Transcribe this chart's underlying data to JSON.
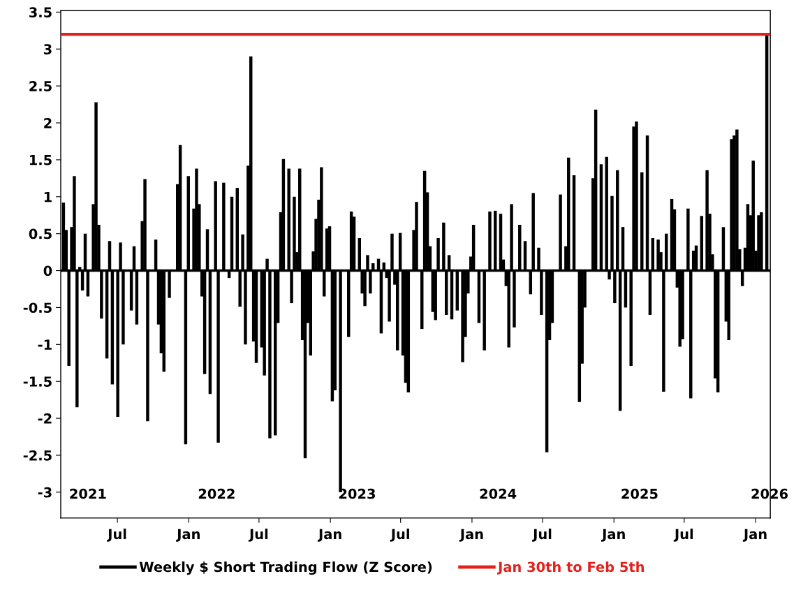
{
  "chart_data": {
    "type": "bar",
    "x": [
      "2021-02-12",
      "2021-02-19",
      "2021-02-26",
      "2021-03-05",
      "2021-03-12",
      "2021-03-19",
      "2021-03-26",
      "2021-04-02",
      "2021-04-09",
      "2021-04-16",
      "2021-04-30",
      "2021-05-07",
      "2021-05-14",
      "2021-05-21",
      "2021-06-04",
      "2021-06-11",
      "2021-06-18",
      "2021-07-02",
      "2021-07-09",
      "2021-07-16",
      "2021-08-06",
      "2021-08-13",
      "2021-08-20",
      "2021-09-03",
      "2021-09-10",
      "2021-09-17",
      "2021-10-08",
      "2021-10-15",
      "2021-10-22",
      "2021-10-29",
      "2021-11-12",
      "2021-12-03",
      "2021-12-10",
      "2021-12-24",
      "2021-12-31",
      "2022-01-14",
      "2022-01-21",
      "2022-01-28",
      "2022-02-04",
      "2022-02-11",
      "2022-02-18",
      "2022-02-25",
      "2022-03-11",
      "2022-03-18",
      "2022-04-01",
      "2022-04-15",
      "2022-04-22",
      "2022-05-06",
      "2022-05-13",
      "2022-05-20",
      "2022-05-27",
      "2022-06-03",
      "2022-06-10",
      "2022-06-17",
      "2022-06-24",
      "2022-07-08",
      "2022-07-15",
      "2022-07-22",
      "2022-07-29",
      "2022-08-12",
      "2022-08-19",
      "2022-08-26",
      "2022-09-02",
      "2022-09-16",
      "2022-09-23",
      "2022-09-30",
      "2022-10-07",
      "2022-10-14",
      "2022-10-21",
      "2022-10-28",
      "2022-11-04",
      "2022-11-11",
      "2022-11-18",
      "2022-11-25",
      "2022-12-02",
      "2022-12-09",
      "2022-12-16",
      "2022-12-23",
      "2022-12-30",
      "2023-01-06",
      "2023-01-13",
      "2023-01-27",
      "2023-02-17",
      "2023-02-24",
      "2023-03-03",
      "2023-03-17",
      "2023-03-24",
      "2023-03-31",
      "2023-04-07",
      "2023-04-14",
      "2023-04-21",
      "2023-05-05",
      "2023-05-12",
      "2023-05-19",
      "2023-05-26",
      "2023-06-02",
      "2023-06-09",
      "2023-06-16",
      "2023-06-23",
      "2023-06-30",
      "2023-07-07",
      "2023-07-14",
      "2023-07-21",
      "2023-08-04",
      "2023-08-11",
      "2023-08-25",
      "2023-09-01",
      "2023-09-08",
      "2023-09-15",
      "2023-09-22",
      "2023-09-29",
      "2023-10-06",
      "2023-10-20",
      "2023-10-27",
      "2023-11-03",
      "2023-11-10",
      "2023-11-24",
      "2023-12-08",
      "2023-12-15",
      "2023-12-22",
      "2023-12-29",
      "2024-01-05",
      "2024-01-19",
      "2024-02-02",
      "2024-02-16",
      "2024-03-01",
      "2024-03-15",
      "2024-03-22",
      "2024-03-29",
      "2024-04-05",
      "2024-04-12",
      "2024-04-19",
      "2024-05-03",
      "2024-05-17",
      "2024-05-31",
      "2024-06-07",
      "2024-06-21",
      "2024-06-28",
      "2024-07-12",
      "2024-07-19",
      "2024-07-26",
      "2024-08-16",
      "2024-08-30",
      "2024-09-06",
      "2024-09-20",
      "2024-10-04",
      "2024-10-11",
      "2024-10-18",
      "2024-11-08",
      "2024-11-15",
      "2024-11-29",
      "2024-12-13",
      "2024-12-20",
      "2024-12-27",
      "2025-01-03",
      "2025-01-10",
      "2025-01-17",
      "2025-01-24",
      "2025-01-31",
      "2025-02-14",
      "2025-02-21",
      "2025-02-28",
      "2025-03-14",
      "2025-03-28",
      "2025-04-04",
      "2025-04-11",
      "2025-04-25",
      "2025-05-02",
      "2025-05-09",
      "2025-05-16",
      "2025-05-30",
      "2025-06-06",
      "2025-06-13",
      "2025-06-20",
      "2025-06-27",
      "2025-07-11",
      "2025-07-18",
      "2025-07-25",
      "2025-08-01",
      "2025-08-15",
      "2025-08-29",
      "2025-09-05",
      "2025-09-12",
      "2025-09-19",
      "2025-09-26",
      "2025-10-10",
      "2025-10-17",
      "2025-10-24",
      "2025-10-31",
      "2025-11-07",
      "2025-11-14",
      "2025-11-21",
      "2025-11-28",
      "2025-12-05",
      "2025-12-12",
      "2025-12-19",
      "2025-12-26",
      "2026-01-02",
      "2026-01-09",
      "2026-01-16",
      "2026-01-30"
    ],
    "series": [
      {
        "name": "Weekly $ Short Trading Flow (Z Score)",
        "color": "#000000",
        "values": [
          0.92,
          0.55,
          -1.29,
          0.59,
          1.28,
          -1.85,
          0.05,
          -0.27,
          0.5,
          -0.35,
          0.9,
          2.28,
          0.62,
          -0.65,
          -1.19,
          0.4,
          -1.54,
          -1.98,
          0.38,
          -1.0,
          -0.54,
          0.33,
          -0.73,
          0.67,
          1.24,
          -2.04,
          0.42,
          -0.73,
          -1.12,
          -1.37,
          -0.37,
          1.17,
          1.7,
          -2.35,
          1.28,
          0.84,
          1.38,
          0.9,
          -0.35,
          -1.4,
          0.56,
          -1.67,
          1.21,
          -2.33,
          1.19,
          -0.1,
          1.0,
          1.12,
          -0.49,
          0.49,
          -1.0,
          1.42,
          2.9,
          -0.96,
          -1.25,
          -1.04,
          -1.42,
          0.16,
          -2.27,
          -2.23,
          -0.71,
          0.79,
          1.51,
          1.38,
          -0.44,
          1.0,
          0.25,
          1.38,
          -0.94,
          -2.54,
          -0.71,
          -1.15,
          0.26,
          0.7,
          0.96,
          1.4,
          -0.35,
          0.57,
          0.6,
          -1.77,
          -1.62,
          -3.0,
          -0.9,
          0.8,
          0.73,
          0.44,
          -0.31,
          -0.48,
          0.21,
          -0.31,
          0.1,
          0.16,
          -0.85,
          0.11,
          -0.1,
          -0.69,
          0.5,
          -0.19,
          -1.08,
          0.51,
          -1.15,
          -1.52,
          -1.65,
          0.55,
          0.93,
          -0.79,
          1.35,
          1.06,
          0.33,
          -0.56,
          -0.67,
          0.44,
          0.65,
          -0.6,
          0.21,
          -0.66,
          -0.54,
          -1.24,
          -0.9,
          -0.31,
          0.19,
          0.62,
          -0.71,
          -1.08,
          0.8,
          0.81,
          0.77,
          0.15,
          -0.21,
          -1.04,
          0.9,
          -0.77,
          0.62,
          0.4,
          -0.32,
          1.05,
          0.31,
          -0.6,
          -2.46,
          -0.94,
          -0.71,
          1.03,
          0.33,
          1.53,
          1.29,
          -1.78,
          -1.26,
          -0.5,
          1.25,
          2.18,
          1.44,
          1.54,
          -0.12,
          1.01,
          -0.44,
          1.36,
          -1.9,
          0.59,
          -0.5,
          -1.29,
          1.95,
          2.02,
          1.33,
          1.83,
          -0.6,
          0.44,
          0.42,
          0.25,
          -1.64,
          0.5,
          0.97,
          0.83,
          -0.23,
          -1.03,
          -0.93,
          0.84,
          -1.73,
          0.27,
          0.34,
          0.74,
          1.36,
          0.77,
          0.22,
          -1.46,
          -1.65,
          0.59,
          -0.69,
          -0.94,
          1.78,
          1.83,
          1.91,
          0.29,
          -0.21,
          0.31,
          0.9,
          0.75,
          1.49,
          0.27,
          0.75,
          0.79,
          3.2
        ]
      }
    ],
    "ref_lines": [
      {
        "axis": "y",
        "value": 3.2,
        "label": "Jan 30th to Feb 5th",
        "color": "#e3201b",
        "line_style": "solid"
      }
    ],
    "xlim": [
      "2021-02-05",
      "2026-02-08"
    ],
    "xticks": [
      {
        "value": "2021-07-01",
        "label": "Jul"
      },
      {
        "value": "2022-01-01",
        "label": "Jan"
      },
      {
        "value": "2022-07-01",
        "label": "Jul"
      },
      {
        "value": "2023-01-01",
        "label": "Jan"
      },
      {
        "value": "2023-07-01",
        "label": "Jul"
      },
      {
        "value": "2024-01-01",
        "label": "Jan"
      },
      {
        "value": "2024-07-01",
        "label": "Jul"
      },
      {
        "value": "2025-01-01",
        "label": "Jan"
      },
      {
        "value": "2025-07-01",
        "label": "Jul"
      },
      {
        "value": "2026-01-01",
        "label": "Jan"
      }
    ],
    "x2ticks": [
      {
        "value": "2021-04-16",
        "label": "2021"
      },
      {
        "value": "2022-03-14",
        "label": "2022"
      },
      {
        "value": "2023-03-11",
        "label": "2023"
      },
      {
        "value": "2024-03-08",
        "label": "2024"
      },
      {
        "value": "2025-03-08",
        "label": "2025"
      },
      {
        "value": "2026-02-06",
        "label": "2026"
      }
    ],
    "x2lim": [
      "2021-02-05",
      "2026-02-08"
    ],
    "ylim": [
      -3.35,
      3.52
    ],
    "yticks": [
      -3,
      -2.5,
      -2,
      -1.5,
      -1,
      -0.5,
      0,
      0.5,
      1,
      1.5,
      2,
      2.5,
      3,
      3.5
    ],
    "legend": "bottom"
  }
}
